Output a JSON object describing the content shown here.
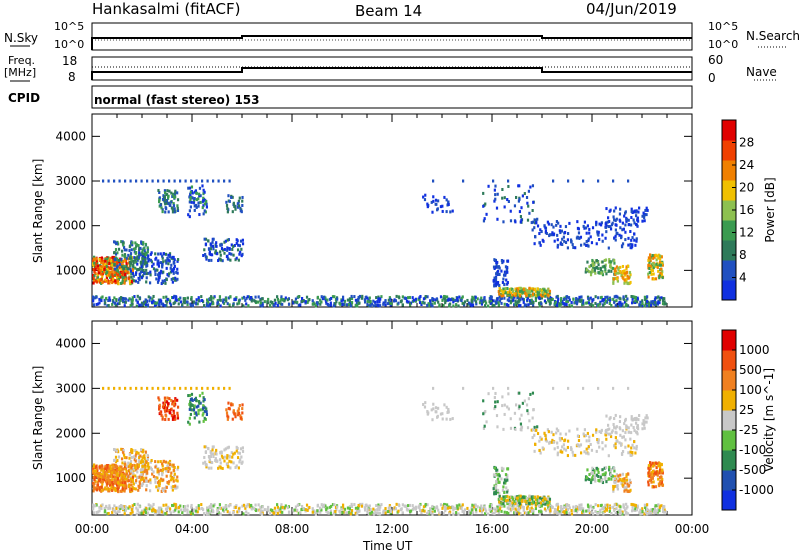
{
  "header": {
    "title": "Hankasalmi (fitACF)",
    "beam": "Beam 14",
    "date": "04/Jun/2019"
  },
  "noise_panel": {
    "left_label": "N.Sky",
    "right_label": "N.Search",
    "left_ticks": [
      "10^5",
      "10^0"
    ],
    "right_ticks": [
      "10^5",
      "10^0"
    ]
  },
  "freq_panel": {
    "left_label_1": "Freq.",
    "left_label_2": "[MHz]",
    "right_label": "Nave",
    "left_ticks": [
      "18",
      "8"
    ],
    "right_ticks": [
      "60",
      "0"
    ]
  },
  "cpid": {
    "label": "CPID",
    "text": "normal (fast stereo) 153"
  },
  "colors": {
    "power": [
      "#1030e0",
      "#2050c0",
      "#2e7a5a",
      "#3a9b50",
      "#8dc050",
      "#f0c000",
      "#f08000",
      "#f04000",
      "#e00000"
    ],
    "velocity": [
      "#e00000",
      "#f05010",
      "#f08020",
      "#f0b000",
      "#c8c8c8",
      "#60c040",
      "#2e8a50",
      "#2050b0",
      "#1030e0"
    ]
  },
  "chart_data": [
    {
      "type": "heatmap",
      "title": "Power",
      "ylabel": "Slant Range [km]",
      "ylim": [
        180,
        4500
      ],
      "y_ticks": [
        1000,
        2000,
        3000,
        4000
      ],
      "colorbar_label": "Power [dB]",
      "colorbar_ticks": [
        "28",
        "24",
        "20",
        "16",
        "12",
        "8",
        "4"
      ],
      "colorbar_range": [
        0,
        32
      ]
    },
    {
      "type": "heatmap",
      "title": "Velocity",
      "ylabel": "Slant Range [km]",
      "ylim": [
        180,
        4500
      ],
      "y_ticks": [
        1000,
        2000,
        3000,
        4000
      ],
      "colorbar_label": "Velocity [m s^-1]",
      "colorbar_ticks": [
        "1000",
        "500",
        "100",
        "25",
        "-25",
        "-100",
        "-500",
        "-1000"
      ]
    }
  ],
  "x_axis": {
    "label": "Time UT",
    "ticks": [
      "00:00",
      "04:00",
      "08:00",
      "12:00",
      "16:00",
      "20:00",
      "00:00"
    ]
  }
}
